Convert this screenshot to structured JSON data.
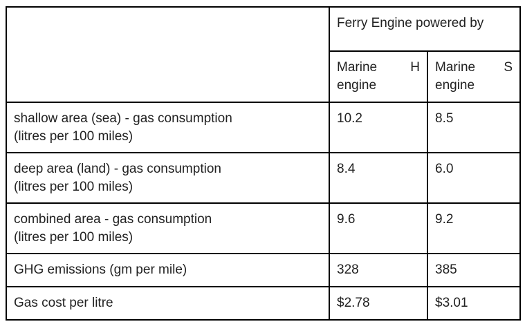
{
  "table": {
    "group_header": "Ferry Engine powered by",
    "engines": [
      {
        "name_word": "Marine",
        "name_letter": "H",
        "name_suffix": "engine"
      },
      {
        "name_word": "Marine",
        "name_letter": "S",
        "name_suffix": "engine"
      }
    ],
    "rows": [
      {
        "label_line1": "shallow area (sea) - gas consumption",
        "label_line2": "(litres per 100 miles)",
        "h": "10.2",
        "s": "8.5"
      },
      {
        "label_line1": "deep area (land) - gas consumption",
        "label_line2": "(litres per 100 miles)",
        "h": "8.4",
        "s": "6.0"
      },
      {
        "label_line1": "combined area - gas consumption",
        "label_line2": "(litres per 100 miles)",
        "h": "9.6",
        "s": "9.2"
      },
      {
        "label_line1": "GHG emissions (gm per mile)",
        "h": "328",
        "s": "385"
      },
      {
        "label_line1": "Gas cost per litre",
        "h": "$2.78",
        "s": "$3.01"
      }
    ]
  }
}
